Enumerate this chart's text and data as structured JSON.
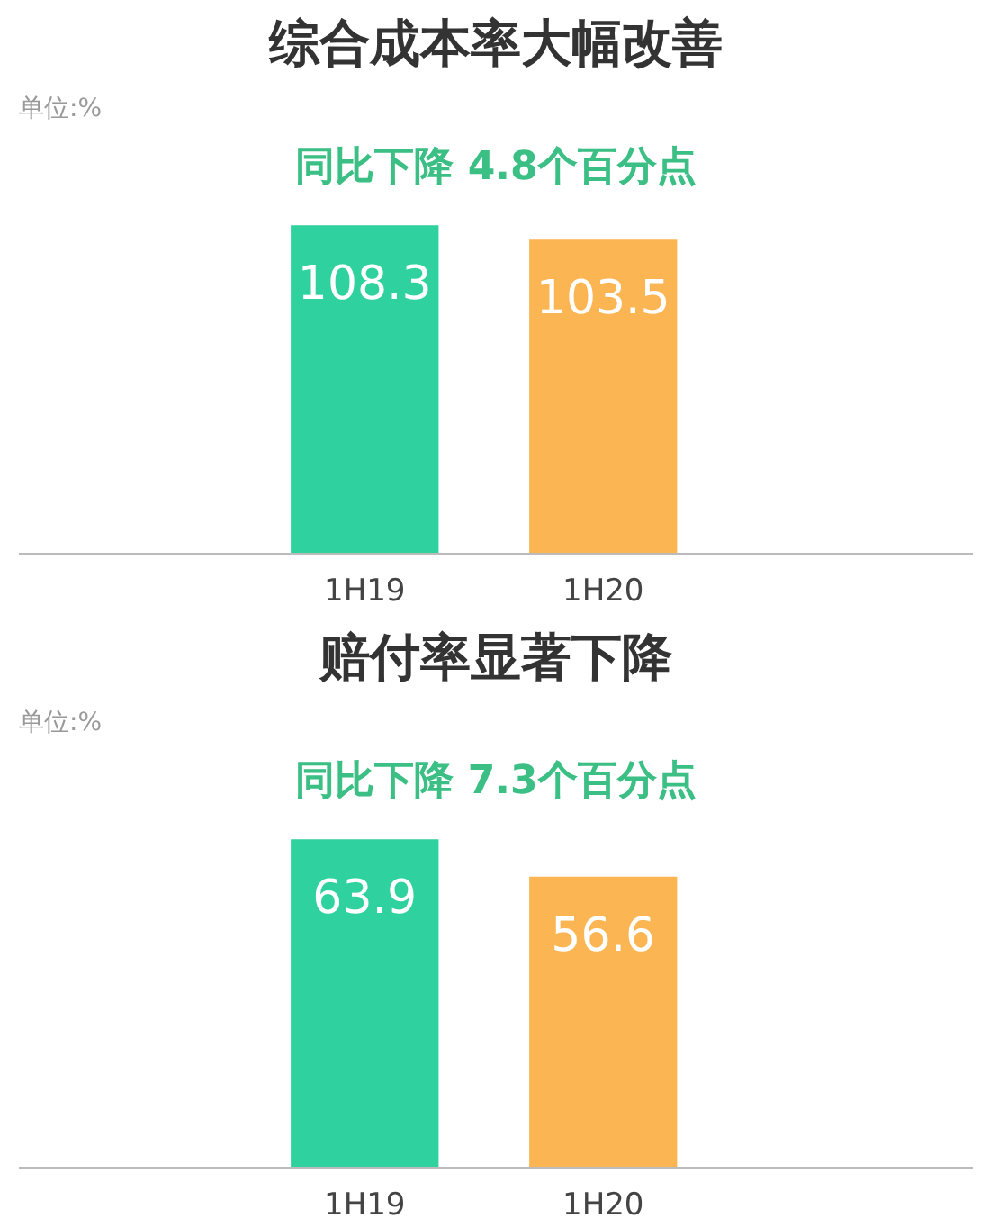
{
  "chart_data": [
    {
      "type": "bar",
      "title": "综合成本率大幅改善",
      "subtitle": "同比下降 4.8个百分点",
      "annotations": [
        "单位:%"
      ],
      "categories": [
        "1H19",
        "1H20"
      ],
      "colors": [
        "#2fd19e",
        "#fbb552"
      ],
      "values": [
        108.3,
        103.5
      ],
      "data_labels": true,
      "grid": false,
      "tick_labels": "x"
    },
    {
      "type": "bar",
      "title": "赔付率显著下降",
      "subtitle": "同比下降 7.3个百分点",
      "annotations": [
        "单位:%"
      ],
      "categories": [
        "1H19",
        "1H20"
      ],
      "colors": [
        "#2fd19e",
        "#fbb552"
      ],
      "values": [
        63.9,
        56.6
      ],
      "data_labels": true,
      "grid": false,
      "tick_labels": "x"
    }
  ]
}
